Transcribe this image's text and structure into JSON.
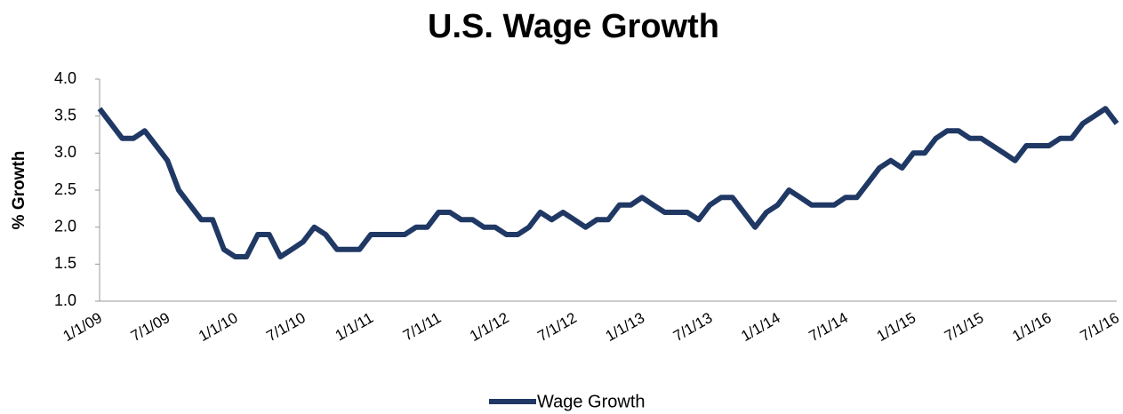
{
  "chart_data": {
    "type": "line",
    "title": "U.S. Wage Growth",
    "y_label": "% Growth",
    "categories": [
      "1/1/09",
      null,
      null,
      null,
      null,
      null,
      "7/1/09",
      null,
      null,
      null,
      null,
      null,
      "1/1/10",
      null,
      null,
      null,
      null,
      null,
      "7/1/10",
      null,
      null,
      null,
      null,
      null,
      "1/1/11",
      null,
      null,
      null,
      null,
      null,
      "7/1/11",
      null,
      null,
      null,
      null,
      null,
      "1/1/12",
      null,
      null,
      null,
      null,
      null,
      "7/1/12",
      null,
      null,
      null,
      null,
      null,
      "1/1/13",
      null,
      null,
      null,
      null,
      null,
      "7/1/13",
      null,
      null,
      null,
      null,
      null,
      "1/1/14",
      null,
      null,
      null,
      null,
      null,
      "7/1/14",
      null,
      null,
      null,
      null,
      null,
      "1/1/15",
      null,
      null,
      null,
      null,
      null,
      "7/1/15",
      null,
      null,
      null,
      null,
      null,
      "1/1/16",
      null,
      null,
      null,
      null,
      null,
      "7/1/16"
    ],
    "series": [
      {
        "name": "Wage Growth",
        "color": "#203864",
        "values": [
          3.6,
          3.4,
          3.2,
          3.2,
          3.3,
          3.1,
          2.9,
          2.5,
          2.3,
          2.1,
          2.1,
          1.7,
          1.6,
          1.6,
          1.9,
          1.9,
          1.6,
          1.7,
          1.8,
          2.0,
          1.9,
          1.7,
          1.7,
          1.7,
          1.9,
          1.9,
          1.9,
          1.9,
          2.0,
          2.0,
          2.2,
          2.2,
          2.1,
          2.1,
          2.0,
          2.0,
          1.9,
          1.9,
          2.0,
          2.2,
          2.1,
          2.2,
          2.1,
          2.0,
          2.1,
          2.1,
          2.3,
          2.3,
          2.4,
          2.3,
          2.2,
          2.2,
          2.2,
          2.1,
          2.3,
          2.4,
          2.4,
          2.2,
          2.0,
          2.2,
          2.3,
          2.5,
          2.4,
          2.3,
          2.3,
          2.3,
          2.4,
          2.4,
          2.6,
          2.8,
          2.9,
          2.8,
          3.0,
          3.0,
          3.2,
          3.3,
          3.3,
          3.2,
          3.2,
          3.1,
          3.0,
          2.9,
          3.1,
          3.1,
          3.1,
          3.2,
          3.2,
          3.4,
          3.5,
          3.6,
          3.4
        ]
      }
    ],
    "ylim": [
      1,
      4
    ],
    "yticks": [
      {
        "value": 1,
        "label": "1.0"
      },
      1.5,
      {
        "value": 2,
        "label": "2.0"
      },
      2.5,
      {
        "value": 3,
        "label": "3.0"
      },
      3.5,
      {
        "value": 4,
        "label": "4.0"
      }
    ],
    "grid": false,
    "legend": "bottom"
  }
}
